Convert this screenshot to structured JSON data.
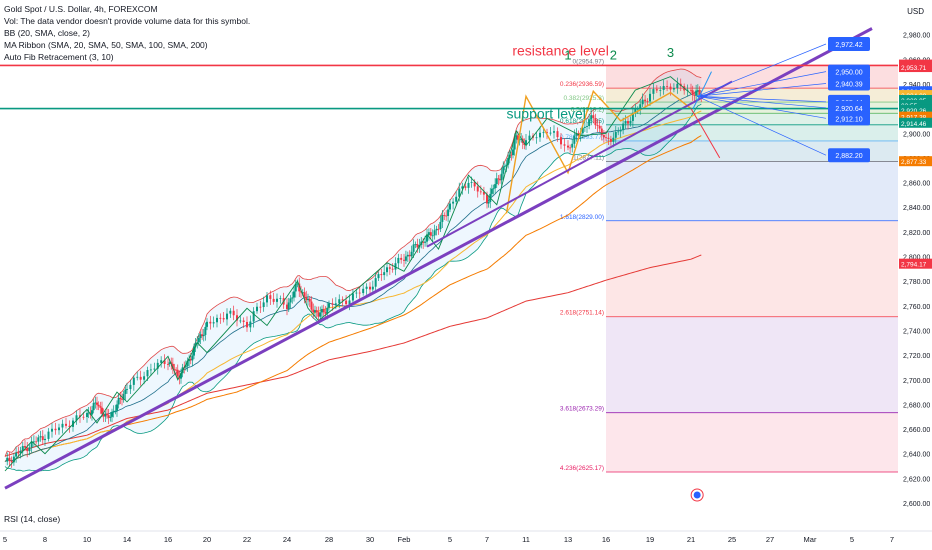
{
  "header": {
    "symbol_line": "Gold Spot / U.S. Dollar, 4h, FOREXCOM",
    "vol_line": "Vol: The data vendor doesn't provide volume data for this symbol.",
    "bb_line": "BB (20, SMA, close, 2)",
    "ma_line": "MA Ribbon (SMA, 20, SMA, 50, SMA, 100, SMA, 200)",
    "fib_line": "Auto Fib Retracement (3, 10)"
  },
  "currency": "USD",
  "rsi_label": "RSI (14, close)",
  "colors": {
    "up": "#089981",
    "down": "#f23645",
    "trend": "#7b3fbf",
    "resistance": "#f23645",
    "support": "#089981",
    "tag_blue": "#2962ff",
    "ma20": "#1f6f8b",
    "ma50": "#f7b731",
    "ma100": "#f57c00",
    "ma200": "#e53935",
    "bb": "#e04747",
    "zigzag": "#f0a020"
  },
  "chart_data": {
    "type": "candlestick",
    "ylim": [
      2600,
      3000
    ],
    "y_ticks": [
      "2,980.00",
      "2,960.00",
      "2,940.00",
      "2,920.00",
      "2,900.00",
      "2,880.00",
      "2,860.00",
      "2,840.00",
      "2,820.00",
      "2,800.00",
      "2,780.00",
      "2,760.00",
      "2,740.00",
      "2,720.00",
      "2,700.00",
      "2,680.00",
      "2,660.00",
      "2,640.00",
      "2,620.00",
      "2,600.00"
    ],
    "x_ticks": [
      {
        "label": "5",
        "day": 0
      },
      {
        "label": "8",
        "day": 3
      },
      {
        "label": "10",
        "day": 5
      },
      {
        "label": "14",
        "day": 9
      },
      {
        "label": "16",
        "day": 11
      },
      {
        "label": "20",
        "day": 15
      },
      {
        "label": "22",
        "day": 17
      },
      {
        "label": "24",
        "day": 19
      },
      {
        "label": "28",
        "day": 23
      },
      {
        "label": "30",
        "day": 25
      },
      {
        "label": "Feb",
        "day": 27
      },
      {
        "label": "5",
        "day": 31
      },
      {
        "label": "7",
        "day": 33
      },
      {
        "label": "11",
        "day": 37
      },
      {
        "label": "13",
        "day": 39
      },
      {
        "label": "16",
        "day": 42
      },
      {
        "label": "19",
        "day": 45
      },
      {
        "label": "21",
        "day": 47
      },
      {
        "label": "25",
        "day": 51
      },
      {
        "label": "27",
        "day": 53
      },
      {
        "label": "Mar",
        "day": 55
      },
      {
        "label": "5",
        "day": 59
      },
      {
        "label": "7",
        "day": 61
      }
    ],
    "close_path": [
      [
        0,
        2632
      ],
      [
        1,
        2641
      ],
      [
        2,
        2648
      ],
      [
        3,
        2655
      ],
      [
        4,
        2664
      ],
      [
        5,
        2672
      ],
      [
        6,
        2681
      ],
      [
        7,
        2668
      ],
      [
        8,
        2679
      ],
      [
        9,
        2694
      ],
      [
        10,
        2707
      ],
      [
        11,
        2716
      ],
      [
        12,
        2703
      ],
      [
        13,
        2713
      ],
      [
        14,
        2731
      ],
      [
        15,
        2744
      ],
      [
        16,
        2754
      ],
      [
        17,
        2745
      ],
      [
        18,
        2768
      ],
      [
        19,
        2760
      ],
      [
        20,
        2777
      ],
      [
        21,
        2763
      ],
      [
        22,
        2752
      ],
      [
        23,
        2760
      ],
      [
        24,
        2766
      ],
      [
        25,
        2776
      ],
      [
        26,
        2790
      ],
      [
        27,
        2798
      ],
      [
        28,
        2808
      ],
      [
        29,
        2815
      ],
      [
        30,
        2824
      ],
      [
        31,
        2842
      ],
      [
        32,
        2862
      ],
      [
        33,
        2845
      ],
      [
        34,
        2861
      ],
      [
        35,
        2875
      ],
      [
        36,
        2896
      ],
      [
        37,
        2893
      ],
      [
        38,
        2903
      ],
      [
        39,
        2888
      ],
      [
        40,
        2902
      ],
      [
        41,
        2913
      ],
      [
        42,
        2893
      ],
      [
        43,
        2903
      ],
      [
        44,
        2918
      ],
      [
        45,
        2932
      ],
      [
        46,
        2939
      ],
      [
        47,
        2934
      ],
      [
        48,
        2930.95
      ]
    ],
    "fib_levels": [
      {
        "ratio": "0",
        "label": "0(2954.97)",
        "price": 2954.97
      },
      {
        "ratio": "0.236",
        "label": "0.236(2936.59)",
        "price": 2936.59
      },
      {
        "ratio": "0.382",
        "label": "0.382(2925.3)",
        "price": 2925.3
      },
      {
        "ratio": "0.5",
        "label": "0.5(2916.2)",
        "price": 2916.2
      },
      {
        "ratio": "0.618",
        "label": "0.618(2906.85)",
        "price": 2906.85
      },
      {
        "ratio": "0.786",
        "label": "0.786(2893.77)",
        "price": 2893.77
      },
      {
        "ratio": "1",
        "label": "1(2877.11)",
        "price": 2877.11
      },
      {
        "ratio": "1.618",
        "label": "1.618(2829.00)",
        "price": 2829.0
      },
      {
        "ratio": "2.618",
        "label": "2.618(2751.14)",
        "price": 2751.14
      },
      {
        "ratio": "3.618",
        "label": "3.618(2673.29)",
        "price": 2673.29
      },
      {
        "ratio": "4.236",
        "label": "4.236(2625.17)",
        "price": 2625.17
      }
    ],
    "annotations": {
      "resistance_text": "resistance level",
      "support_text": "support level",
      "resistance_price": 2955,
      "support_price": 2920,
      "wave_labels": [
        {
          "text": "1",
          "day": 39,
          "price": 2960
        },
        {
          "text": "2",
          "day": 42.5,
          "price": 2960
        },
        {
          "text": "3",
          "day": 46,
          "price": 2962
        }
      ],
      "blue_tags": [
        {
          "label": "2,972.42",
          "price": 2972.42
        },
        {
          "label": "2,950.00",
          "price": 2950.0
        },
        {
          "label": "2,940.39",
          "price": 2940.39
        },
        {
          "label": "2,925.44",
          "price": 2925.44
        },
        {
          "label": "2,920.64",
          "price": 2920.64
        },
        {
          "label": "2,912.10",
          "price": 2912.1
        },
        {
          "label": "2,882.20",
          "price": 2882.2
        }
      ]
    },
    "price_scale_tags": [
      {
        "label": "2,955.72",
        "price": 2955.72,
        "color": "#f23645"
      },
      {
        "label": "2,953.71",
        "price": 2953.71,
        "color": "#f23645"
      },
      {
        "label": "2,934.08",
        "price": 2934.08,
        "color": "#2962ff"
      },
      {
        "label": "2,934.08",
        "price": 2931.0,
        "color": "#f7b731"
      },
      {
        "label": "2,930.95",
        "price": 2927.0,
        "color": "#089981"
      },
      {
        "label": "03:55",
        "price": 2923.0,
        "color": "#089981"
      },
      {
        "label": "2,920.26",
        "price": 2919.0,
        "color": "#089981"
      },
      {
        "label": "2,917.38",
        "price": 2913.5,
        "color": "#f57c00"
      },
      {
        "label": "2,914.46",
        "price": 2908.5,
        "color": "#089981"
      },
      {
        "label": "2,877.33",
        "price": 2877.33,
        "color": "#f57c00"
      },
      {
        "label": "2,794.17",
        "price": 2794.17,
        "color": "#f23645"
      }
    ]
  }
}
